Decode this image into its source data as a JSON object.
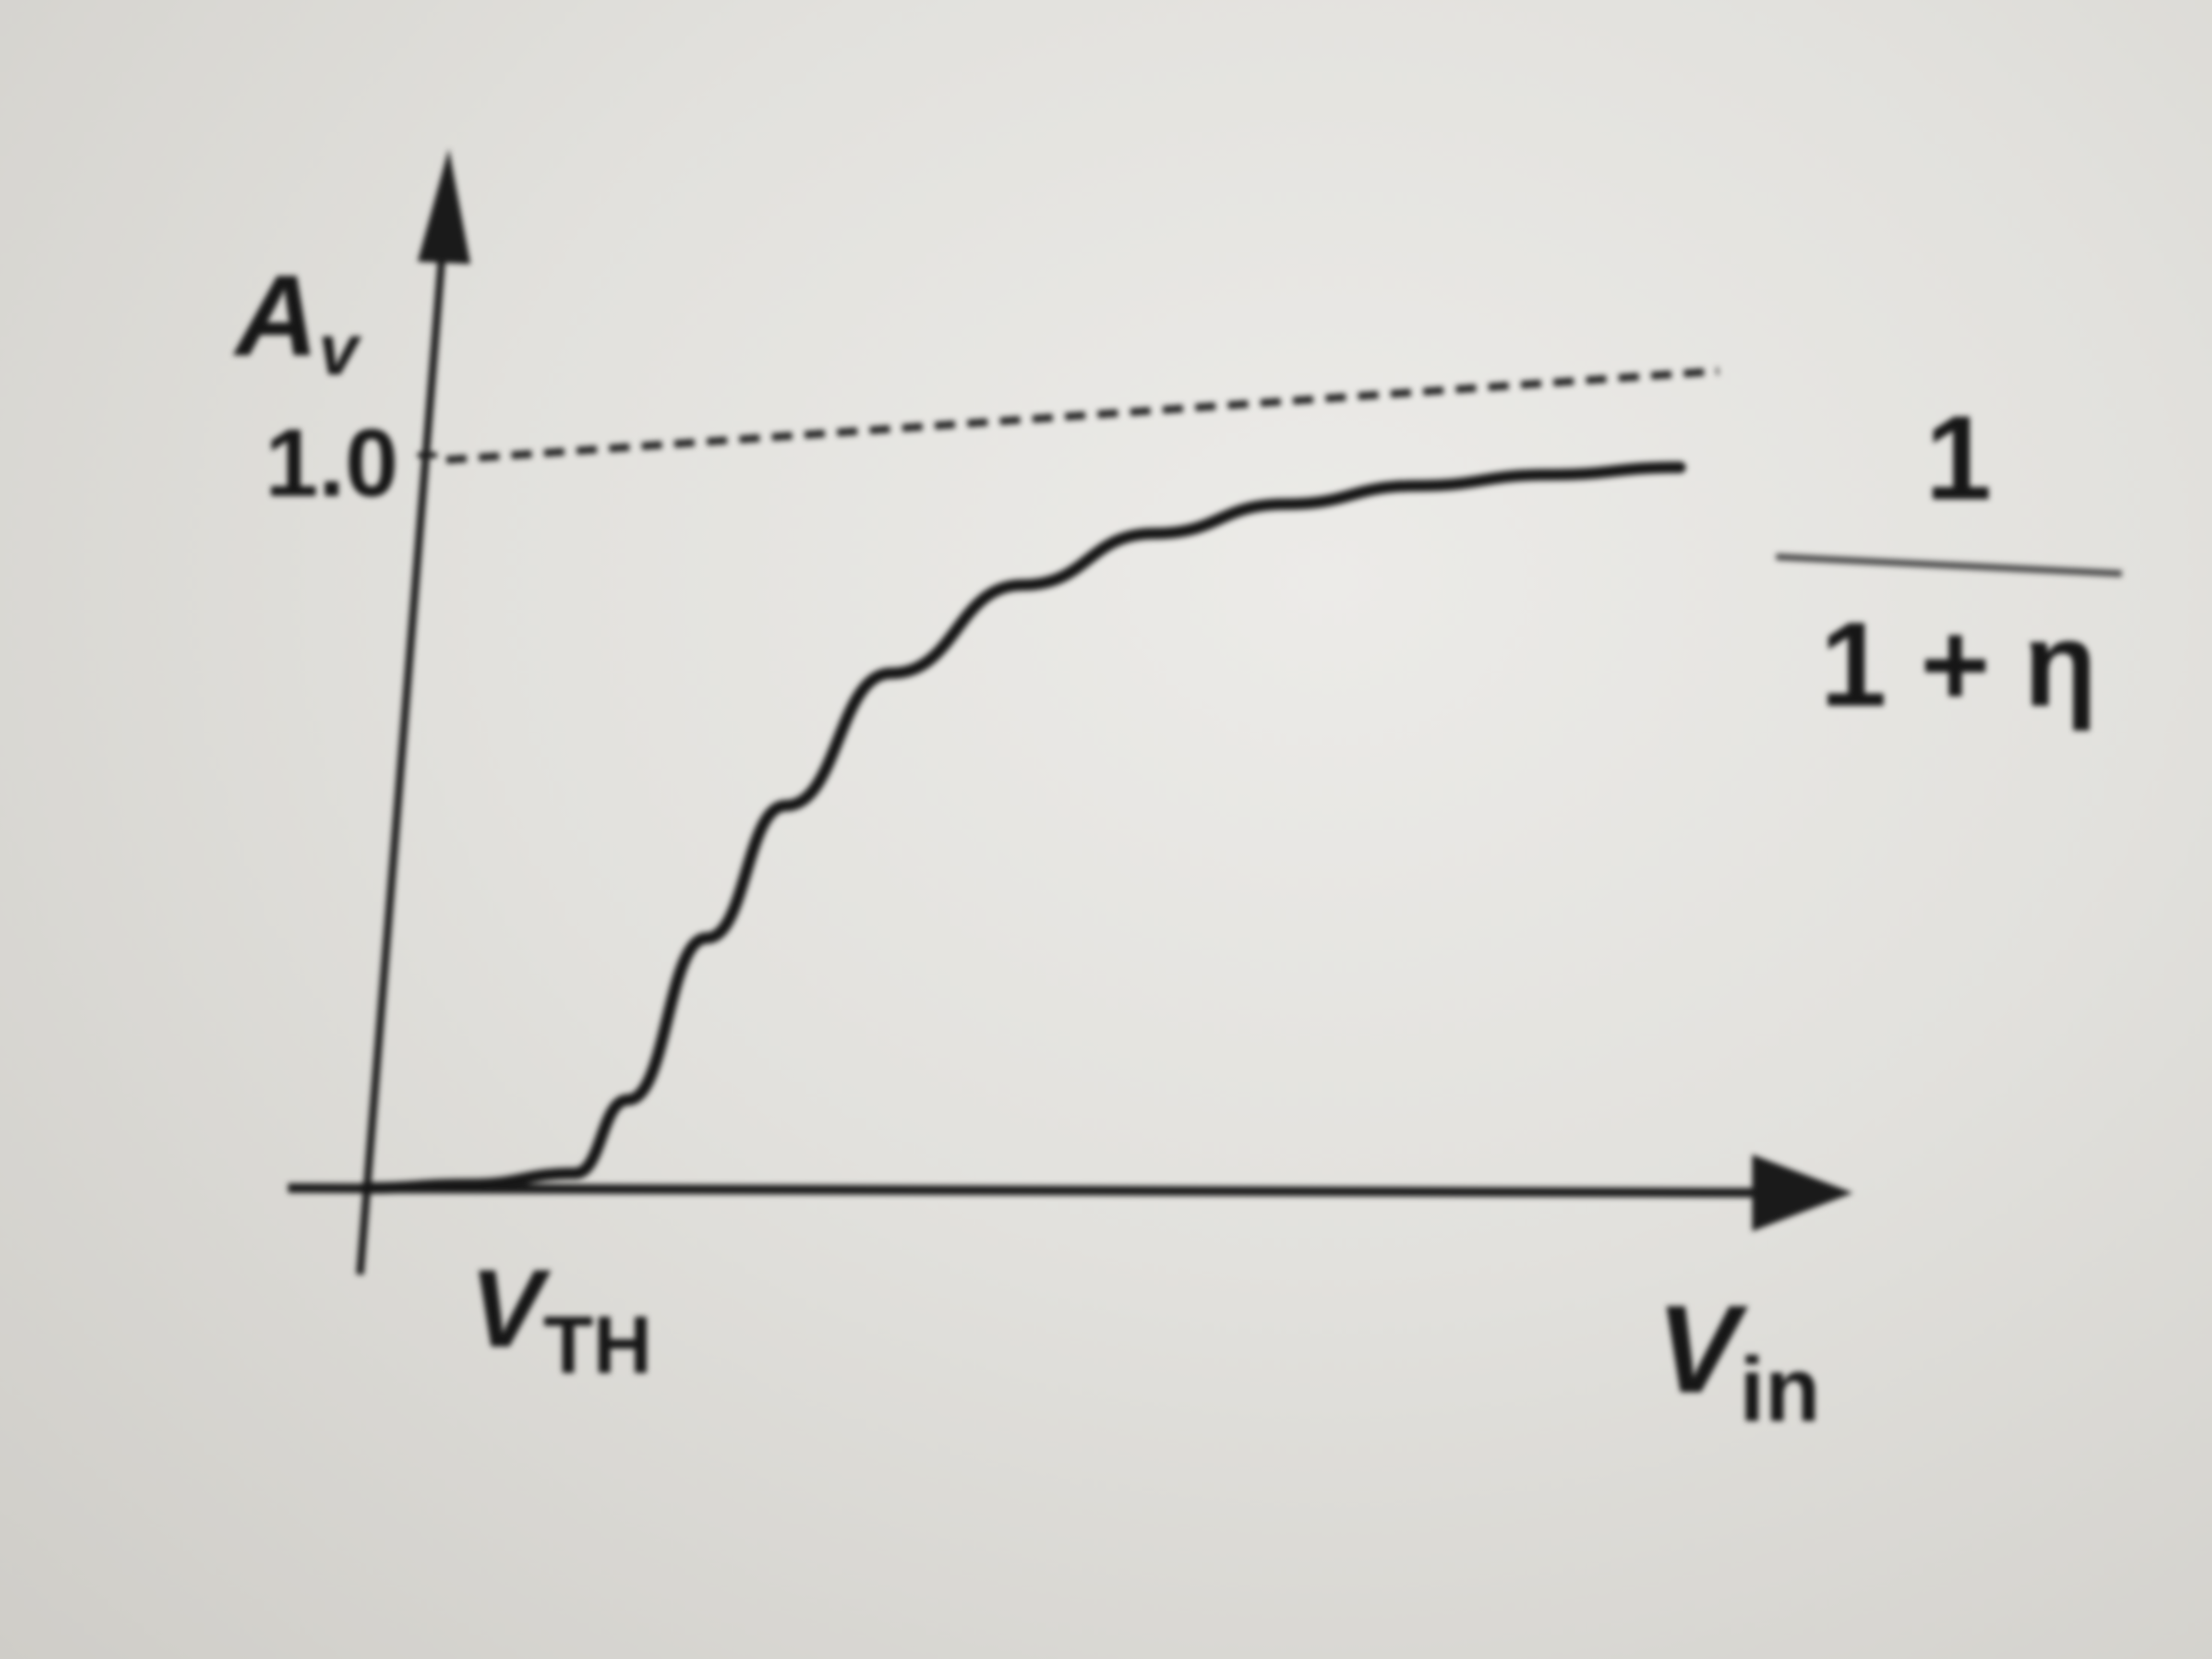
{
  "chart_data": {
    "type": "line",
    "xlabel": "V",
    "xlabel_sub": "in",
    "ylabel": "A",
    "ylabel_sub": "v",
    "x_tick": {
      "main": "V",
      "sub": "TH"
    },
    "y_tick": "1.0",
    "asymptote": {
      "label_numerator": "1",
      "label_denominator": "1 + η"
    },
    "xlim": [
      0,
      10
    ],
    "ylim": [
      0,
      1.25
    ],
    "vth": 1.6,
    "dashed_reference_y": 1.0,
    "series": [
      {
        "style": "solid",
        "x": [
          0,
          0.8,
          1.6,
          2.0,
          2.6,
          3.2,
          4.0,
          5.0,
          6.0,
          7.0,
          8.0,
          9.0,
          10.0
        ],
        "y": [
          0,
          0.005,
          0.02,
          0.12,
          0.34,
          0.52,
          0.7,
          0.82,
          0.89,
          0.93,
          0.955,
          0.97,
          0.98
        ]
      }
    ]
  }
}
